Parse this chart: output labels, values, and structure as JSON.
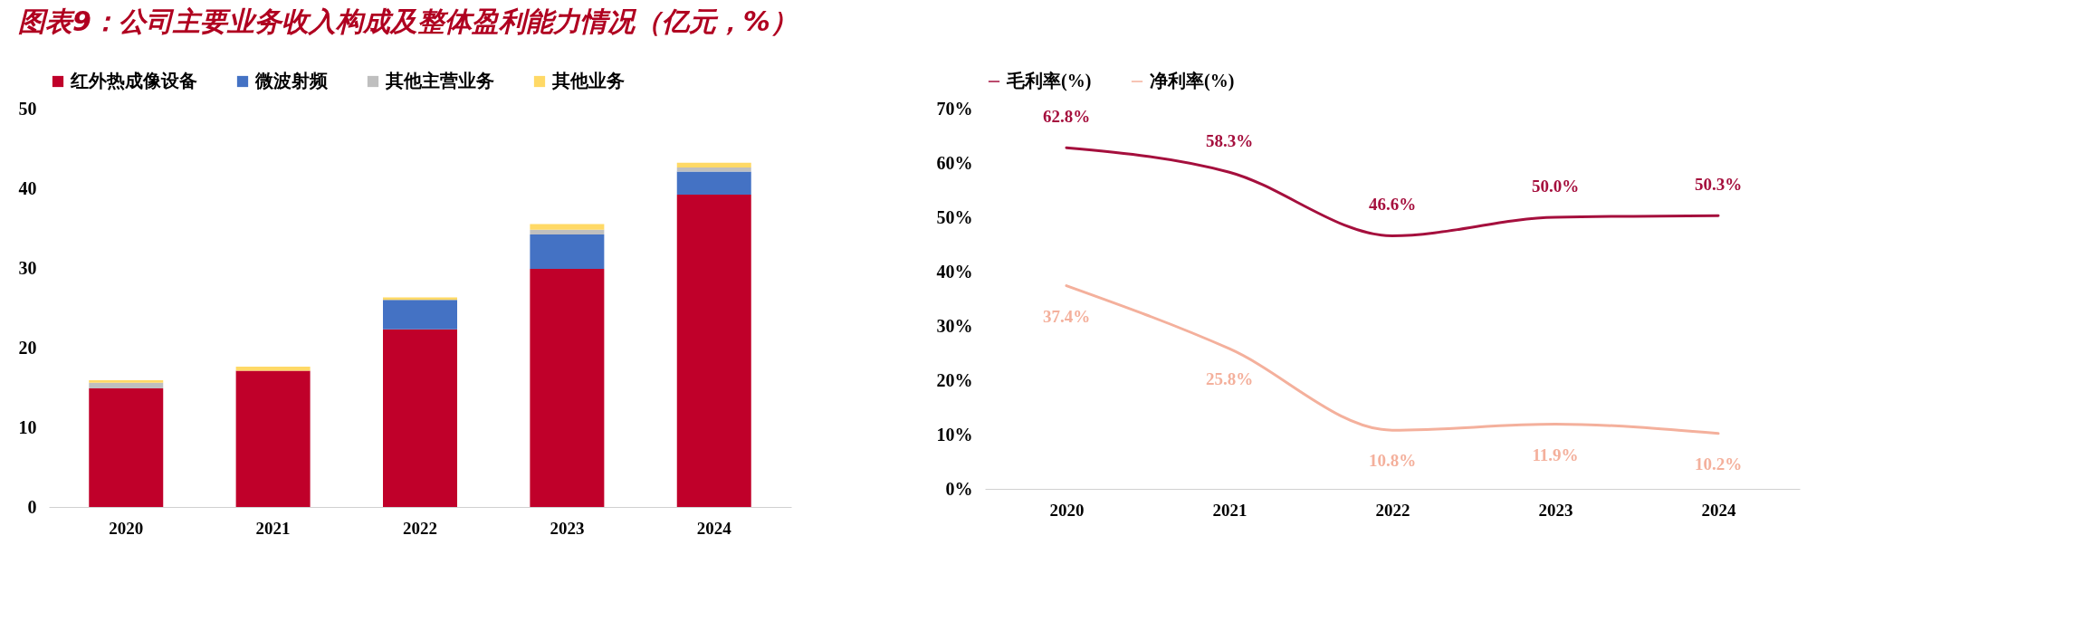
{
  "chart_data": [
    {
      "type": "bar",
      "title": "图表9：公司主要业务收入构成及整体盈利能力情况（亿元，%）",
      "stacked": true,
      "legend": "top",
      "grid": false,
      "categories": [
        "2020",
        "2021",
        "2022",
        "2023",
        "2024"
      ],
      "series": [
        {
          "name": "红外热成像设备",
          "color": "#c0002a",
          "values": [
            14.9,
            17.1,
            22.3,
            29.9,
            39.2
          ]
        },
        {
          "name": "微波射频",
          "color": "#4472c4",
          "values": [
            0,
            0,
            3.7,
            4.3,
            2.9
          ]
        },
        {
          "name": "其他主营业务",
          "color": "#bfbfbf",
          "values": [
            0.7,
            null,
            null,
            0.6,
            0.5
          ]
        },
        {
          "name": "其他业务",
          "color": "#ffd966",
          "values": [
            0.3,
            0.5,
            0.3,
            0.7,
            0.6
          ]
        }
      ],
      "ylim": [
        0,
        50
      ],
      "yticks": [
        0,
        10,
        20,
        30,
        40,
        50
      ]
    },
    {
      "type": "line",
      "legend": "top",
      "grid": false,
      "categories": [
        "2020",
        "2021",
        "2022",
        "2023",
        "2024"
      ],
      "series": [
        {
          "name": "毛利率(%)",
          "color": "#a50f3d",
          "values": [
            62.8,
            58.3,
            46.6,
            50.0,
            50.3
          ],
          "value_labels": [
            "62.8%",
            "58.3%",
            "46.6%",
            "50.0%",
            "50.3%"
          ]
        },
        {
          "name": "净利率(%)",
          "color": "#f4b09c",
          "values": [
            37.4,
            25.8,
            10.8,
            11.9,
            10.2
          ],
          "value_labels": [
            "37.4%",
            "25.8%",
            "10.8%",
            "11.9%",
            "10.2%"
          ]
        }
      ],
      "ylim": [
        0,
        70
      ],
      "yticks": [
        {
          "value": 0,
          "label": "0%"
        },
        {
          "value": 10,
          "label": "10%"
        },
        {
          "value": 20,
          "label": "20%"
        },
        {
          "value": 30,
          "label": "30%"
        },
        {
          "value": 40,
          "label": "40%"
        },
        {
          "value": 50,
          "label": "50%"
        },
        {
          "value": 60,
          "label": "60%"
        },
        {
          "value": 70,
          "label": "70%"
        }
      ]
    }
  ]
}
